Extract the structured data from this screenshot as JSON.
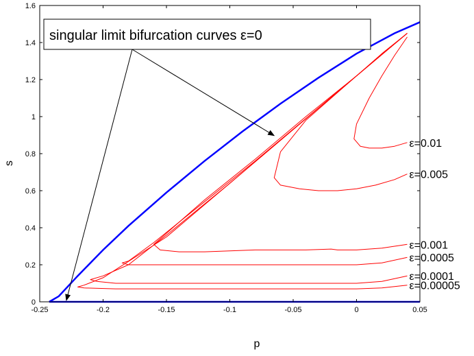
{
  "chart_data": {
    "type": "line",
    "title": "",
    "xlabel": "p",
    "ylabel": "s",
    "xlim": [
      -0.25,
      0.05
    ],
    "ylim": [
      0,
      1.6
    ],
    "grid": false,
    "xticks": [
      -0.25,
      -0.2,
      -0.15,
      -0.1,
      -0.05,
      0,
      0.05
    ],
    "yticks": [
      0,
      0.2,
      0.4,
      0.6,
      0.8,
      1,
      1.2,
      1.4,
      1.6
    ],
    "colors": {
      "singular": "#0000ff",
      "curves": "#ff0000"
    },
    "singular_curves": [
      {
        "x": [
          -0.2425,
          -0.235,
          -0.22,
          -0.2,
          -0.18,
          -0.15,
          -0.12,
          -0.09,
          -0.06,
          -0.03,
          0,
          0.03,
          0.05
        ],
        "y": [
          0.0,
          0.03,
          0.14,
          0.28,
          0.41,
          0.59,
          0.76,
          0.92,
          1.07,
          1.21,
          1.34,
          1.45,
          1.51
        ]
      },
      {
        "x": [
          -0.2425,
          0.05
        ],
        "y": [
          0.0,
          0.0
        ]
      }
    ],
    "series": [
      {
        "name": "ε=0.01",
        "label_value": 0.86,
        "x": [
          0.04,
          0.03,
          0.02,
          0.01,
          0.0,
          -0.002,
          0.003,
          0.01,
          0.02,
          0.03,
          0.04
        ],
        "y": [
          1.43,
          1.33,
          1.22,
          1.1,
          0.96,
          0.88,
          0.84,
          0.83,
          0.83,
          0.84,
          0.86
        ]
      },
      {
        "name": "ε=0.005",
        "label_value": 0.69,
        "x": [
          0.04,
          0.02,
          0.0,
          -0.02,
          -0.04,
          -0.06,
          -0.065,
          -0.06,
          -0.045,
          -0.03,
          -0.015,
          0.0,
          0.015,
          0.03,
          0.04
        ],
        "y": [
          1.45,
          1.34,
          1.22,
          1.1,
          0.98,
          0.81,
          0.67,
          0.63,
          0.61,
          0.6,
          0.6,
          0.61,
          0.63,
          0.66,
          0.69
        ]
      },
      {
        "name": "ε=0.001",
        "label_value": 0.31,
        "x": [
          0.04,
          0.0,
          -0.04,
          -0.08,
          -0.12,
          -0.15,
          -0.16,
          -0.155,
          -0.14,
          -0.12,
          -0.1,
          -0.08,
          -0.06,
          -0.04,
          -0.02,
          -0.015,
          0.0,
          0.02,
          0.03,
          0.04
        ],
        "y": [
          1.45,
          1.22,
          1.0,
          0.77,
          0.55,
          0.37,
          0.31,
          0.28,
          0.27,
          0.27,
          0.275,
          0.28,
          0.28,
          0.28,
          0.285,
          0.28,
          0.28,
          0.29,
          0.3,
          0.31
        ]
      },
      {
        "name": "ε=0.0005",
        "label_value": 0.24,
        "x": [
          0.04,
          0.0,
          -0.04,
          -0.08,
          -0.12,
          -0.16,
          -0.18,
          -0.185,
          -0.18,
          -0.16,
          -0.12,
          -0.08,
          -0.04,
          0.0,
          0.02,
          0.04
        ],
        "y": [
          1.45,
          1.22,
          0.99,
          0.76,
          0.54,
          0.32,
          0.22,
          0.21,
          0.2,
          0.2,
          0.2,
          0.2,
          0.2,
          0.2,
          0.21,
          0.24
        ]
      },
      {
        "name": "ε=0.0001",
        "label_value": 0.14,
        "x": [
          0.04,
          0.0,
          -0.05,
          -0.1,
          -0.15,
          -0.18,
          -0.2,
          -0.21,
          -0.205,
          -0.19,
          -0.15,
          -0.1,
          -0.05,
          0.0,
          0.02,
          0.04
        ],
        "y": [
          1.45,
          1.22,
          0.93,
          0.64,
          0.36,
          0.2,
          0.14,
          0.12,
          0.11,
          0.1,
          0.1,
          0.1,
          0.1,
          0.1,
          0.11,
          0.14
        ]
      },
      {
        "name": "ε=0.00005",
        "label_value": 0.09,
        "x": [
          0.04,
          0.0,
          -0.05,
          -0.1,
          -0.15,
          -0.2,
          -0.215,
          -0.22,
          -0.215,
          -0.19,
          -0.15,
          -0.1,
          -0.05,
          0.0,
          0.02,
          0.04
        ],
        "y": [
          1.45,
          1.22,
          0.93,
          0.64,
          0.35,
          0.13,
          0.09,
          0.08,
          0.075,
          0.07,
          0.07,
          0.07,
          0.07,
          0.07,
          0.075,
          0.09
        ]
      }
    ],
    "annotation": {
      "text": "singular limit bifurcation curves ε=0",
      "arrow_targets": [
        {
          "x": -0.065,
          "y": 0.89
        },
        {
          "x": -0.229,
          "y": 0.0
        }
      ]
    }
  }
}
